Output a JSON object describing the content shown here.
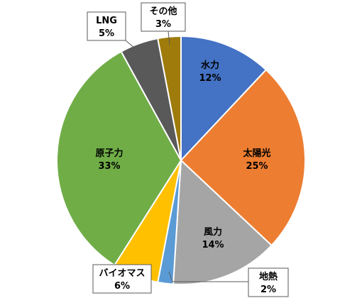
{
  "chart_data": {
    "type": "pie",
    "title": "",
    "start_angle_deg": 0,
    "direction": "clockwise",
    "slices": [
      {
        "category": "水力",
        "value": 12,
        "label": "12%",
        "color": "#4472C4"
      },
      {
        "category": "太陽光",
        "value": 25,
        "label": "25%",
        "color": "#ED7D31"
      },
      {
        "category": "風力",
        "value": 14,
        "label": "14%",
        "color": "#A5A5A5"
      },
      {
        "category": "地熱",
        "value": 2,
        "label": "2%",
        "color": "#5B9BD5"
      },
      {
        "category": "バイオマス",
        "value": 6,
        "label": "6%",
        "color": "#FFC000"
      },
      {
        "category": "原子力",
        "value": 33,
        "label": "33%",
        "color": "#70AD47"
      },
      {
        "category": "LNG",
        "value": 5,
        "label": "5%",
        "color": "#595959"
      },
      {
        "category": "その他",
        "value": 3,
        "label": "3%",
        "color": "#9E7B0A"
      }
    ],
    "legend": "none"
  }
}
